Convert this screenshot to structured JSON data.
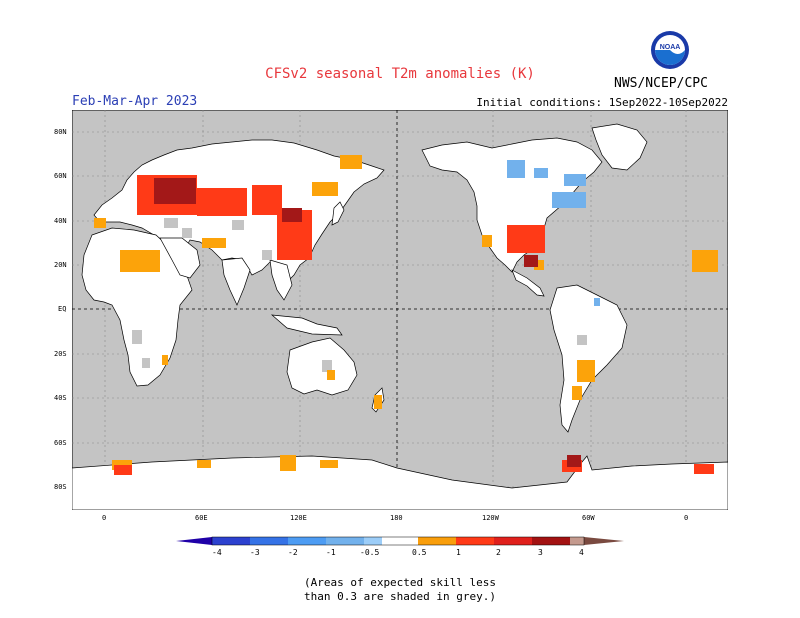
{
  "header": {
    "title": "CFSv2 seasonal T2m anomalies (K)",
    "period": "Feb-Mar-Apr 2023",
    "initial_conditions": "Initial conditions: 1Sep2022-10Sep2022",
    "agency": "NWS/NCEP/CPC",
    "logo_icon": "noaa-logo-icon"
  },
  "map": {
    "lat_labels": [
      "80N",
      "60N",
      "40N",
      "20N",
      "EQ",
      "20S",
      "40S",
      "60S",
      "80S"
    ],
    "lon_labels": [
      "0",
      "60E",
      "120E",
      "180",
      "120W",
      "60W",
      "0"
    ],
    "colors": {
      "ocean": "#c4c4c4",
      "land_nosignal": "#ffffff",
      "low_skill": "#c4c4c4",
      "warm_light": "#fca30a",
      "warm_med": "#ff3a17",
      "warm_strong": "#a31818",
      "cool_light": "#72b1ec"
    }
  },
  "colorbar": {
    "labels": [
      "-4",
      "-3",
      "-2",
      "-1",
      "-0.5",
      "0.5",
      "1",
      "2",
      "3",
      "4"
    ],
    "colors": [
      "#1f00a8",
      "#2c41cf",
      "#3572e6",
      "#4d9cf3",
      "#9ccdf8",
      "#ffffff",
      "#f99e0c",
      "#ff3a17",
      "#e0201c",
      "#a31212",
      "#c49a8e",
      "#7a4a40"
    ]
  },
  "footnote": {
    "line1": "(Areas of expected skill less",
    "line2": "than 0.3 are shaded in grey.)"
  }
}
